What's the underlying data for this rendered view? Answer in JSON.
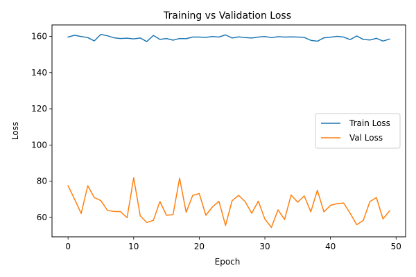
{
  "chart_data": {
    "type": "line",
    "title": "Training vs Validation Loss",
    "xlabel": "Epoch",
    "ylabel": "Loss",
    "xlim": [
      -2.45,
      51.45
    ],
    "ylim": [
      49.3,
      166.3
    ],
    "xticks": [
      0,
      10,
      20,
      30,
      40,
      50
    ],
    "yticks": [
      60,
      80,
      100,
      120,
      140,
      160
    ],
    "grid": false,
    "legend_position": "center-right",
    "x": [
      0,
      1,
      2,
      3,
      4,
      5,
      6,
      7,
      8,
      9,
      10,
      11,
      12,
      13,
      14,
      15,
      16,
      17,
      18,
      19,
      20,
      21,
      22,
      23,
      24,
      25,
      26,
      27,
      28,
      29,
      30,
      31,
      32,
      33,
      34,
      35,
      36,
      37,
      38,
      39,
      40,
      41,
      42,
      43,
      44,
      45,
      46,
      47,
      48,
      49
    ],
    "series": [
      {
        "name": "Train Loss",
        "color": "#1f77b4",
        "values": [
          159.6,
          160.6,
          159.9,
          159.3,
          157.5,
          161.1,
          160.3,
          159.2,
          158.8,
          159.0,
          158.6,
          159.1,
          157.1,
          160.5,
          158.3,
          158.8,
          157.9,
          158.8,
          158.7,
          159.6,
          159.6,
          159.4,
          159.9,
          159.6,
          160.8,
          159.1,
          159.7,
          159.3,
          159.1,
          159.6,
          159.9,
          159.3,
          159.8,
          159.6,
          159.7,
          159.6,
          159.4,
          157.8,
          157.3,
          159.2,
          159.5,
          160.0,
          159.6,
          158.2,
          160.2,
          158.3,
          158.0,
          158.9,
          157.4,
          158.5
        ]
      },
      {
        "name": "Val Loss",
        "color": "#ff7f0e",
        "values": [
          77.5,
          70.0,
          62.2,
          77.5,
          71.0,
          69.3,
          63.9,
          63.3,
          63.2,
          59.9,
          81.9,
          60.9,
          57.2,
          58.4,
          68.8,
          61.2,
          61.6,
          81.7,
          62.8,
          72.2,
          73.2,
          61.2,
          65.8,
          68.9,
          55.6,
          69.2,
          72.2,
          68.7,
          62.3,
          69.0,
          59.1,
          54.5,
          64.2,
          58.9,
          72.4,
          68.4,
          71.9,
          63.1,
          75.0,
          63.1,
          66.7,
          67.6,
          68.0,
          62.3,
          56.0,
          58.4,
          68.7,
          71.0,
          59.2,
          63.6
        ]
      }
    ]
  }
}
